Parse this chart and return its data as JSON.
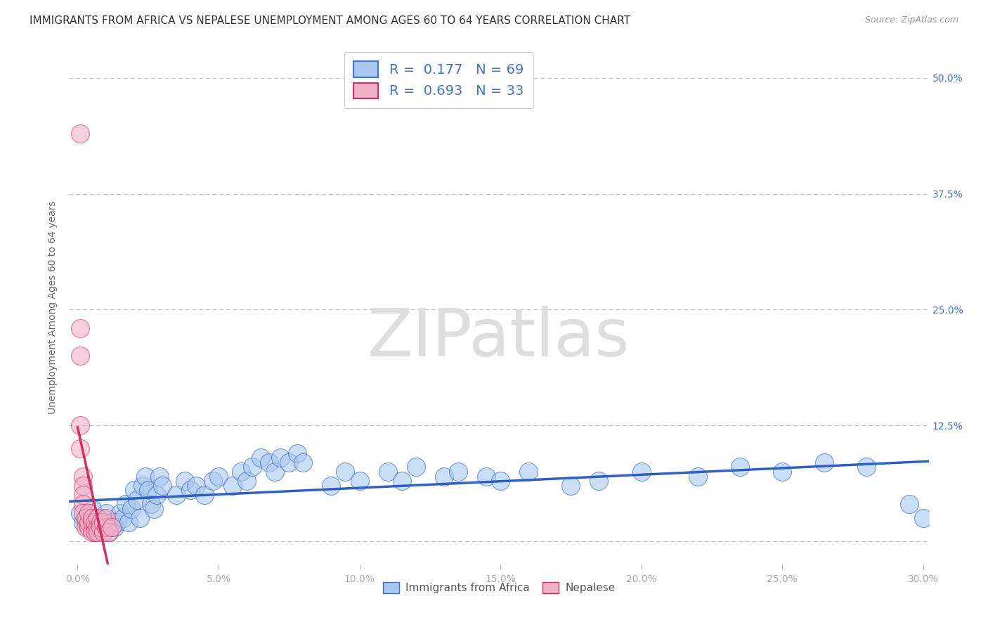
{
  "title": "IMMIGRANTS FROM AFRICA VS NEPALESE UNEMPLOYMENT AMONG AGES 60 TO 64 YEARS CORRELATION CHART",
  "source": "Source: ZipAtlas.com",
  "ylabel": "Unemployment Among Ages 60 to 64 years",
  "watermark": "ZIPatlas",
  "legend_entries": [
    "Immigrants from Africa",
    "Nepalese"
  ],
  "r_blue": 0.177,
  "n_blue": 69,
  "r_pink": 0.693,
  "n_pink": 33,
  "blue_color": "#a8c8f0",
  "pink_color": "#f0b0c8",
  "blue_line_color": "#3060c0",
  "pink_line_color": "#d03060",
  "blue_scatter": [
    [
      0.001,
      0.03
    ],
    [
      0.002,
      0.02
    ],
    [
      0.003,
      0.025
    ],
    [
      0.004,
      0.015
    ],
    [
      0.005,
      0.035
    ],
    [
      0.006,
      0.01
    ],
    [
      0.007,
      0.02
    ],
    [
      0.008,
      0.015
    ],
    [
      0.009,
      0.025
    ],
    [
      0.01,
      0.03
    ],
    [
      0.011,
      0.01
    ],
    [
      0.012,
      0.02
    ],
    [
      0.013,
      0.015
    ],
    [
      0.014,
      0.02
    ],
    [
      0.015,
      0.03
    ],
    [
      0.016,
      0.025
    ],
    [
      0.017,
      0.04
    ],
    [
      0.018,
      0.02
    ],
    [
      0.019,
      0.035
    ],
    [
      0.02,
      0.055
    ],
    [
      0.021,
      0.045
    ],
    [
      0.022,
      0.025
    ],
    [
      0.023,
      0.06
    ],
    [
      0.024,
      0.07
    ],
    [
      0.025,
      0.055
    ],
    [
      0.026,
      0.04
    ],
    [
      0.027,
      0.035
    ],
    [
      0.028,
      0.05
    ],
    [
      0.029,
      0.07
    ],
    [
      0.03,
      0.06
    ],
    [
      0.035,
      0.05
    ],
    [
      0.038,
      0.065
    ],
    [
      0.04,
      0.055
    ],
    [
      0.042,
      0.06
    ],
    [
      0.045,
      0.05
    ],
    [
      0.048,
      0.065
    ],
    [
      0.05,
      0.07
    ],
    [
      0.055,
      0.06
    ],
    [
      0.058,
      0.075
    ],
    [
      0.06,
      0.065
    ],
    [
      0.062,
      0.08
    ],
    [
      0.065,
      0.09
    ],
    [
      0.068,
      0.085
    ],
    [
      0.07,
      0.075
    ],
    [
      0.072,
      0.09
    ],
    [
      0.075,
      0.085
    ],
    [
      0.078,
      0.095
    ],
    [
      0.08,
      0.085
    ],
    [
      0.09,
      0.06
    ],
    [
      0.095,
      0.075
    ],
    [
      0.1,
      0.065
    ],
    [
      0.11,
      0.075
    ],
    [
      0.115,
      0.065
    ],
    [
      0.12,
      0.08
    ],
    [
      0.13,
      0.07
    ],
    [
      0.135,
      0.075
    ],
    [
      0.145,
      0.07
    ],
    [
      0.15,
      0.065
    ],
    [
      0.16,
      0.075
    ],
    [
      0.175,
      0.06
    ],
    [
      0.185,
      0.065
    ],
    [
      0.2,
      0.075
    ],
    [
      0.22,
      0.07
    ],
    [
      0.235,
      0.08
    ],
    [
      0.25,
      0.075
    ],
    [
      0.265,
      0.085
    ],
    [
      0.28,
      0.08
    ],
    [
      0.295,
      0.04
    ],
    [
      0.3,
      0.025
    ]
  ],
  "pink_scatter": [
    [
      0.001,
      0.44
    ],
    [
      0.001,
      0.23
    ],
    [
      0.001,
      0.2
    ],
    [
      0.001,
      0.125
    ],
    [
      0.001,
      0.1
    ],
    [
      0.002,
      0.07
    ],
    [
      0.002,
      0.06
    ],
    [
      0.002,
      0.05
    ],
    [
      0.002,
      0.04
    ],
    [
      0.002,
      0.03
    ],
    [
      0.003,
      0.02
    ],
    [
      0.003,
      0.015
    ],
    [
      0.003,
      0.025
    ],
    [
      0.004,
      0.015
    ],
    [
      0.004,
      0.02
    ],
    [
      0.004,
      0.03
    ],
    [
      0.005,
      0.01
    ],
    [
      0.005,
      0.02
    ],
    [
      0.005,
      0.025
    ],
    [
      0.006,
      0.015
    ],
    [
      0.006,
      0.02
    ],
    [
      0.006,
      0.01
    ],
    [
      0.007,
      0.015
    ],
    [
      0.007,
      0.025
    ],
    [
      0.007,
      0.01
    ],
    [
      0.008,
      0.02
    ],
    [
      0.008,
      0.015
    ],
    [
      0.009,
      0.01
    ],
    [
      0.009,
      0.02
    ],
    [
      0.01,
      0.015
    ],
    [
      0.01,
      0.025
    ],
    [
      0.011,
      0.01
    ],
    [
      0.012,
      0.015
    ]
  ],
  "xlim": [
    -0.003,
    0.302
  ],
  "ylim": [
    -0.025,
    0.53
  ],
  "xticks": [
    0.0,
    0.05,
    0.1,
    0.15,
    0.2,
    0.25,
    0.3
  ],
  "xticklabels": [
    "0.0%",
    "5.0%",
    "10.0%",
    "15.0%",
    "20.0%",
    "25.0%",
    "30.0%"
  ],
  "yticks_right": [
    0.0,
    0.125,
    0.25,
    0.375,
    0.5
  ],
  "yticklabels_right": [
    "",
    "12.5%",
    "25.0%",
    "37.5%",
    "50.0%"
  ],
  "background_color": "#ffffff",
  "grid_color": "#bbbbbb"
}
